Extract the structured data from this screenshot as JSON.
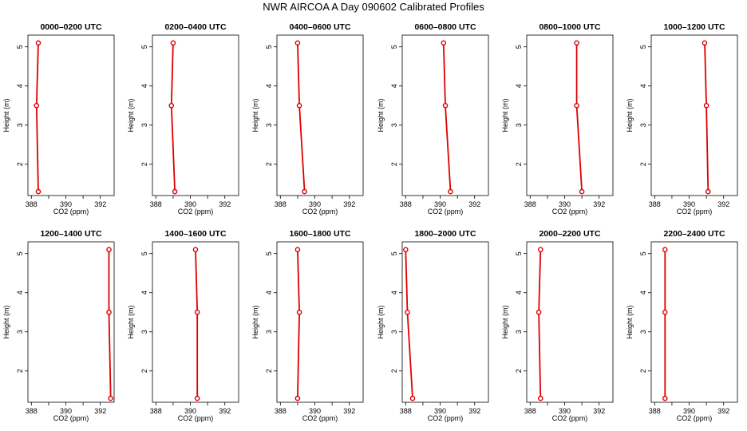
{
  "title": "NWR AIRCOA A  Day 090602  Calibrated Profiles",
  "colors": {
    "profile_line": "#dd0000",
    "marker": "#dd0000",
    "axes": "#000000"
  },
  "chart_data": [
    {
      "type": "line",
      "title": "0000–0200 UTC",
      "xlabel": "CO2 (ppm)",
      "ylabel": "Height (m)",
      "xlim": [
        387.8,
        392.8
      ],
      "ylim": [
        1.2,
        5.3
      ],
      "xticks": [
        388,
        390,
        392
      ],
      "yticks": [
        2,
        3,
        4,
        5
      ],
      "series": [
        {
          "x": [
            388.4,
            388.3,
            388.4
          ],
          "y": [
            1.3,
            3.5,
            5.1
          ]
        }
      ]
    },
    {
      "type": "line",
      "title": "0200–0400 UTC",
      "xlabel": "CO2 (ppm)",
      "ylabel": "Height (m)",
      "xlim": [
        387.8,
        392.8
      ],
      "ylim": [
        1.2,
        5.3
      ],
      "xticks": [
        388,
        390,
        392
      ],
      "yticks": [
        2,
        3,
        4,
        5
      ],
      "series": [
        {
          "x": [
            389.1,
            388.9,
            389.0
          ],
          "y": [
            1.3,
            3.5,
            5.1
          ]
        }
      ]
    },
    {
      "type": "line",
      "title": "0400–0600 UTC",
      "xlabel": "CO2 (ppm)",
      "ylabel": "Height (m)",
      "xlim": [
        387.8,
        392.8
      ],
      "ylim": [
        1.2,
        5.3
      ],
      "xticks": [
        388,
        390,
        392
      ],
      "yticks": [
        2,
        3,
        4,
        5
      ],
      "series": [
        {
          "x": [
            389.4,
            389.1,
            389.0
          ],
          "y": [
            1.3,
            3.5,
            5.1
          ]
        }
      ]
    },
    {
      "type": "line",
      "title": "0600–0800 UTC",
      "xlabel": "CO2 (ppm)",
      "ylabel": "Height (m)",
      "xlim": [
        387.8,
        392.8
      ],
      "ylim": [
        1.2,
        5.3
      ],
      "xticks": [
        388,
        390,
        392
      ],
      "yticks": [
        2,
        3,
        4,
        5
      ],
      "series": [
        {
          "x": [
            390.6,
            390.3,
            390.2
          ],
          "y": [
            1.3,
            3.5,
            5.1
          ]
        }
      ]
    },
    {
      "type": "line",
      "title": "0800–1000 UTC",
      "xlabel": "CO2 (ppm)",
      "ylabel": "Height (m)",
      "xlim": [
        387.8,
        392.8
      ],
      "ylim": [
        1.2,
        5.3
      ],
      "xticks": [
        388,
        390,
        392
      ],
      "yticks": [
        2,
        3,
        4,
        5
      ],
      "series": [
        {
          "x": [
            391.0,
            390.7,
            390.7
          ],
          "y": [
            1.3,
            3.5,
            5.1
          ]
        }
      ]
    },
    {
      "type": "line",
      "title": "1000–1200 UTC",
      "xlabel": "CO2 (ppm)",
      "ylabel": "Height (m)",
      "xlim": [
        387.8,
        392.8
      ],
      "ylim": [
        1.2,
        5.3
      ],
      "xticks": [
        388,
        390,
        392
      ],
      "yticks": [
        2,
        3,
        4,
        5
      ],
      "series": [
        {
          "x": [
            391.1,
            391.0,
            390.9
          ],
          "y": [
            1.3,
            3.5,
            5.1
          ]
        }
      ]
    },
    {
      "type": "line",
      "title": "1200–1400 UTC",
      "xlabel": "CO2 (ppm)",
      "ylabel": "Height (m)",
      "xlim": [
        387.8,
        392.8
      ],
      "ylim": [
        1.2,
        5.3
      ],
      "xticks": [
        388,
        390,
        392
      ],
      "yticks": [
        2,
        3,
        4,
        5
      ],
      "series": [
        {
          "x": [
            392.6,
            392.5,
            392.5
          ],
          "y": [
            1.3,
            3.5,
            5.1
          ]
        }
      ]
    },
    {
      "type": "line",
      "title": "1400–1600 UTC",
      "xlabel": "CO2 (ppm)",
      "ylabel": "Height (m)",
      "xlim": [
        387.8,
        392.8
      ],
      "ylim": [
        1.2,
        5.3
      ],
      "xticks": [
        388,
        390,
        392
      ],
      "yticks": [
        2,
        3,
        4,
        5
      ],
      "series": [
        {
          "x": [
            390.4,
            390.4,
            390.3
          ],
          "y": [
            1.3,
            3.5,
            5.1
          ]
        }
      ]
    },
    {
      "type": "line",
      "title": "1600–1800 UTC",
      "xlabel": "CO2 (ppm)",
      "ylabel": "Height (m)",
      "xlim": [
        387.8,
        392.8
      ],
      "ylim": [
        1.2,
        5.3
      ],
      "xticks": [
        388,
        390,
        392
      ],
      "yticks": [
        2,
        3,
        4,
        5
      ],
      "series": [
        {
          "x": [
            389.0,
            389.1,
            389.0
          ],
          "y": [
            1.3,
            3.5,
            5.1
          ]
        }
      ]
    },
    {
      "type": "line",
      "title": "1800–2000 UTC",
      "xlabel": "CO2 (ppm)",
      "ylabel": "Height (m)",
      "xlim": [
        387.8,
        392.8
      ],
      "ylim": [
        1.2,
        5.3
      ],
      "xticks": [
        388,
        390,
        392
      ],
      "yticks": [
        2,
        3,
        4,
        5
      ],
      "series": [
        {
          "x": [
            388.4,
            388.1,
            388.0
          ],
          "y": [
            1.3,
            3.5,
            5.1
          ]
        }
      ]
    },
    {
      "type": "line",
      "title": "2000–2200 UTC",
      "xlabel": "CO2 (ppm)",
      "ylabel": "Height (m)",
      "xlim": [
        387.8,
        392.8
      ],
      "ylim": [
        1.2,
        5.3
      ],
      "xticks": [
        388,
        390,
        392
      ],
      "yticks": [
        2,
        3,
        4,
        5
      ],
      "series": [
        {
          "x": [
            388.6,
            388.5,
            388.6
          ],
          "y": [
            1.3,
            3.5,
            5.1
          ]
        }
      ]
    },
    {
      "type": "line",
      "title": "2200–2400 UTC",
      "xlabel": "CO2 (ppm)",
      "ylabel": "Height (m)",
      "xlim": [
        387.8,
        392.8
      ],
      "ylim": [
        1.2,
        5.3
      ],
      "xticks": [
        388,
        390,
        392
      ],
      "yticks": [
        2,
        3,
        4,
        5
      ],
      "series": [
        {
          "x": [
            388.6,
            388.6,
            388.6
          ],
          "y": [
            1.3,
            3.5,
            5.1
          ]
        }
      ]
    }
  ]
}
